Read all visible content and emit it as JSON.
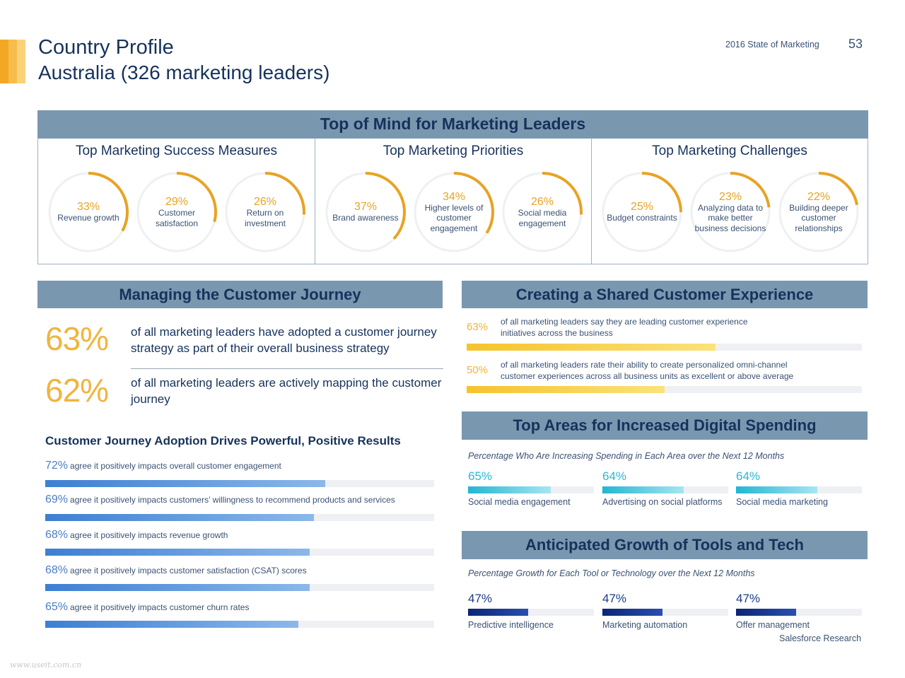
{
  "header": {
    "title": "Country Profile",
    "subtitle": "Australia (326 marketing leaders)",
    "report_name": "2016 State of Marketing",
    "page_number": "53",
    "accent_colors": [
      "#f3a823",
      "#f6bd4a",
      "#f9d27a"
    ]
  },
  "top_of_mind": {
    "heading": "Top of Mind for Marketing Leaders",
    "columns": [
      {
        "title": "Top Marketing Success Measures",
        "items": [
          {
            "pct": "33%",
            "value": 33,
            "label": "Revenue growth"
          },
          {
            "pct": "29%",
            "value": 29,
            "label": "Customer satisfaction"
          },
          {
            "pct": "26%",
            "value": 26,
            "label": "Return on investment"
          }
        ]
      },
      {
        "title": "Top Marketing Priorities",
        "items": [
          {
            "pct": "37%",
            "value": 37,
            "label": "Brand awareness"
          },
          {
            "pct": "34%",
            "value": 34,
            "label": "Higher levels of customer engagement"
          },
          {
            "pct": "26%",
            "value": 26,
            "label": "Social media engagement"
          }
        ]
      },
      {
        "title": "Top Marketing Challenges",
        "items": [
          {
            "pct": "25%",
            "value": 25,
            "label": "Budget constraints"
          },
          {
            "pct": "23%",
            "value": 23,
            "label": "Analyzing data to make better business decisions"
          },
          {
            "pct": "22%",
            "value": 22,
            "label": "Building deeper customer relationships"
          }
        ]
      }
    ],
    "ring_color": "#e8a324",
    "ring_track_color": "#eef0f2"
  },
  "customer_journey": {
    "heading": "Managing the Customer Journey",
    "stats": [
      {
        "pct": "63%",
        "text": "of all marketing leaders have adopted a customer journey strategy as part of their overall business strategy"
      },
      {
        "pct": "62%",
        "text": "of all marketing leaders are actively mapping the customer journey"
      }
    ],
    "results_heading": "Customer Journey Adoption Drives Powerful, Positive Results",
    "results": [
      {
        "pct": "72%",
        "value": 72,
        "label": "agree it positively impacts overall customer engagement"
      },
      {
        "pct": "69%",
        "value": 69,
        "label": "agree it positively impacts customers’ willingness to recommend products and services"
      },
      {
        "pct": "68%",
        "value": 68,
        "label": "agree it positively impacts revenue growth"
      },
      {
        "pct": "68%",
        "value": 68,
        "label": "agree it positively impacts customer satisfaction (CSAT) scores"
      },
      {
        "pct": "65%",
        "value": 65,
        "label": "agree it positively impacts customer churn rates"
      }
    ]
  },
  "shared_experience": {
    "heading": "Creating a Shared Customer Experience",
    "items": [
      {
        "pct": "63%",
        "value": 63,
        "text_lines": [
          "of all marketing leaders say they are leading customer experience",
          "initiatives across the business"
        ]
      },
      {
        "pct": "50%",
        "value": 50,
        "text_lines": [
          "of all marketing leaders rate their ability to create personalized omni-channel",
          "customer experiences across all business units as excellent or above average"
        ]
      }
    ]
  },
  "digital_spending": {
    "heading": "Top Areas for Increased Digital Spending",
    "subtitle": "Percentage Who Are Increasing Spending in Each Area over the Next 12 Months",
    "items": [
      {
        "pct": "65%",
        "value": 65,
        "label": "Social media engagement"
      },
      {
        "pct": "64%",
        "value": 64,
        "label": "Advertising on social platforms"
      },
      {
        "pct": "64%",
        "value": 64,
        "label": "Social media marketing"
      }
    ]
  },
  "tools_tech": {
    "heading": "Anticipated Growth of Tools and Tech",
    "subtitle": "Percentage Growth for Each Tool or Technology over the Next 12 Months",
    "items": [
      {
        "pct": "47%",
        "value": 47,
        "label": "Predictive intelligence"
      },
      {
        "pct": "47%",
        "value": 47,
        "label": "Marketing automation"
      },
      {
        "pct": "47%",
        "value": 47,
        "label": "Offer management"
      }
    ],
    "source": "Salesforce Research"
  },
  "watermark": "www.useit.com.cn"
}
